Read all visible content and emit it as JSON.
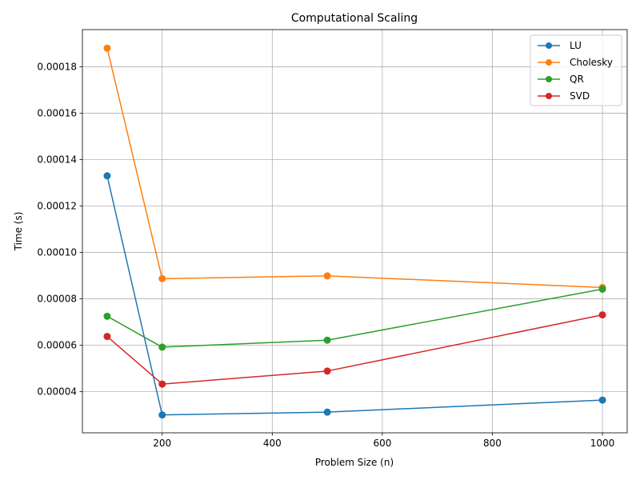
{
  "chart_data": {
    "type": "line",
    "title": "Computational Scaling",
    "xlabel": "Problem Size (n)",
    "ylabel": "Time (s)",
    "x": [
      100,
      200,
      500,
      1000
    ],
    "xlim": [
      55,
      1045
    ],
    "ylim": [
      2.23e-05,
      0.000196
    ],
    "xticks": [
      200,
      400,
      600,
      800,
      1000
    ],
    "xtick_labels": [
      "200",
      "400",
      "600",
      "800",
      "1000"
    ],
    "yticks": [
      4e-05,
      6e-05,
      8e-05,
      0.0001,
      0.00012,
      0.00014,
      0.00016,
      0.00018
    ],
    "ytick_labels": [
      "0.00004",
      "0.00006",
      "0.00008",
      "0.00010",
      "0.00012",
      "0.00014",
      "0.00016",
      "0.00018"
    ],
    "grid": true,
    "legend_position": "top-right",
    "markers": "circle",
    "series": [
      {
        "name": "LU",
        "color": "#1f77b4",
        "values": [
          0.000133,
          3e-05,
          3.12e-05,
          3.64e-05
        ]
      },
      {
        "name": "Cholesky",
        "color": "#ff7f0e",
        "values": [
          0.000188,
          8.87e-05,
          8.99e-05,
          8.49e-05
        ]
      },
      {
        "name": "QR",
        "color": "#2ca02c",
        "values": [
          7.25e-05,
          5.92e-05,
          6.22e-05,
          8.42e-05
        ]
      },
      {
        "name": "SVD",
        "color": "#d62728",
        "values": [
          6.38e-05,
          4.33e-05,
          4.89e-05,
          7.31e-05
        ]
      }
    ]
  }
}
